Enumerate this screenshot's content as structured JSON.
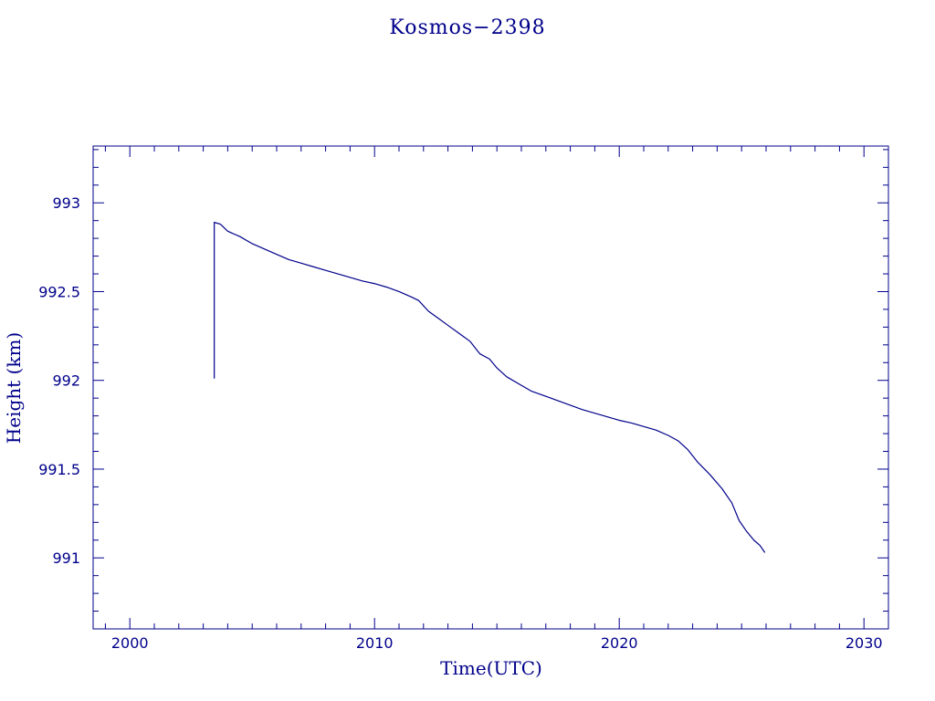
{
  "colors": {
    "ink": "#00008b",
    "background": "#ffffff"
  },
  "chart_data": {
    "type": "line",
    "title": "Kosmos−2398",
    "xlabel": "Time(UTC)",
    "ylabel": "Height (km)",
    "xlim": [
      1998.5,
      2031
    ],
    "ylim": [
      990.6,
      993.32
    ],
    "x_ticks": [
      2000,
      2010,
      2020,
      2030
    ],
    "x_tick_labels": [
      "2000",
      "2010",
      "2020",
      "2030"
    ],
    "y_ticks": [
      991,
      991.5,
      992,
      992.5,
      993
    ],
    "y_tick_labels": [
      "991",
      "991.5",
      "992",
      "992.5",
      "993"
    ],
    "x_minor_step": 1,
    "y_minor_step": 0.1,
    "grid": false,
    "legend": "none",
    "series": [
      {
        "x": [
          2003.45,
          2003.45,
          2003.7,
          2004.0,
          2004.5,
          2005.0,
          2005.5,
          2006.0,
          2006.5,
          2007.0,
          2007.5,
          2008.0,
          2008.5,
          2009.0,
          2009.5,
          2010.0,
          2010.5,
          2011.0,
          2011.5,
          2011.8,
          2012.2,
          2012.6,
          2013.0,
          2013.5,
          2013.9,
          2014.3,
          2014.7,
          2015.0,
          2015.4,
          2015.9,
          2016.4,
          2017.0,
          2017.5,
          2018.0,
          2018.5,
          2019.0,
          2019.5,
          2020.0,
          2020.5,
          2021.0,
          2021.5,
          2022.0,
          2022.4,
          2022.8,
          2023.2,
          2023.7,
          2024.2,
          2024.6,
          2024.9,
          2025.2,
          2025.5,
          2025.75,
          2025.95
        ],
        "y": [
          992.01,
          992.89,
          992.88,
          992.84,
          992.81,
          992.77,
          992.74,
          992.71,
          992.68,
          992.66,
          992.64,
          992.62,
          992.6,
          992.58,
          992.56,
          992.545,
          992.525,
          992.5,
          992.47,
          992.45,
          992.39,
          992.35,
          992.31,
          992.26,
          992.22,
          992.15,
          992.12,
          992.07,
          992.02,
          991.98,
          991.94,
          991.91,
          991.885,
          991.86,
          991.835,
          991.815,
          991.795,
          991.775,
          991.76,
          991.74,
          991.72,
          991.69,
          991.66,
          991.61,
          991.54,
          991.47,
          991.39,
          991.31,
          991.21,
          991.15,
          991.1,
          991.07,
          991.03
        ]
      }
    ]
  }
}
